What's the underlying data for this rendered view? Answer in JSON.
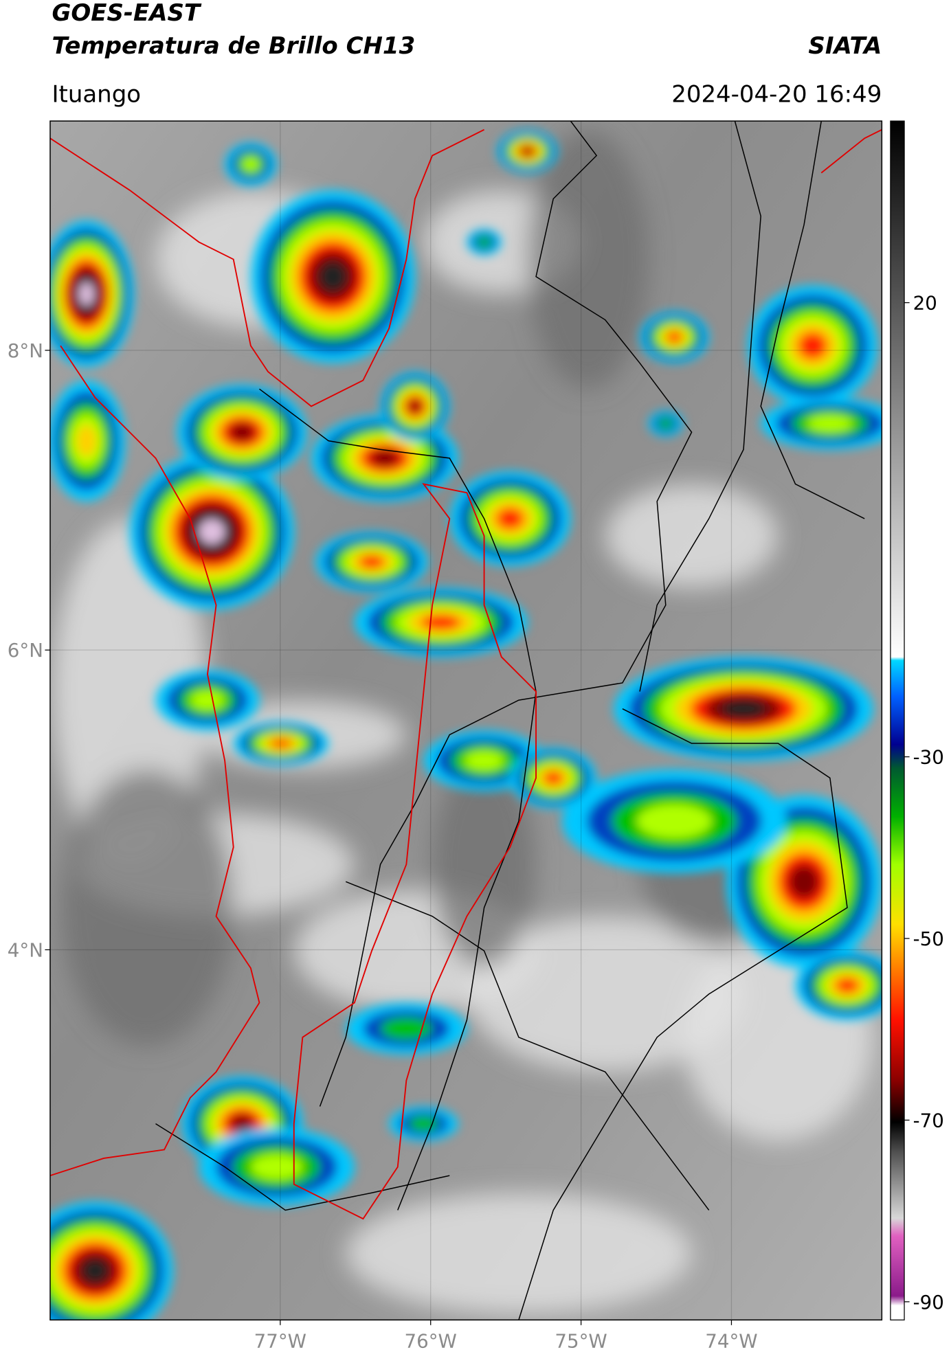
{
  "header": {
    "title": "GOES-EAST",
    "subtitle": "Temperatura de Brillo CH13",
    "source": "SIATA",
    "location": "Ituango",
    "datetime": "2024-04-20 16:49"
  },
  "map": {
    "xlim": [
      -78.53,
      -73.0
    ],
    "ylim": [
      1.53,
      9.53
    ],
    "xticks": [
      {
        "value": -77,
        "label": "77°W"
      },
      {
        "value": -76,
        "label": "76°W"
      },
      {
        "value": -75,
        "label": "75°W"
      },
      {
        "value": -74,
        "label": "74°W"
      }
    ],
    "yticks": [
      {
        "value": 8,
        "label": "8°N"
      },
      {
        "value": 6,
        "label": "6°N"
      },
      {
        "value": 4,
        "label": "4°N"
      }
    ],
    "grid": true
  },
  "colorbar": {
    "lim": [
      -92,
      40
    ],
    "ticks": [
      20,
      -30,
      -50,
      -70,
      -90
    ]
  }
}
